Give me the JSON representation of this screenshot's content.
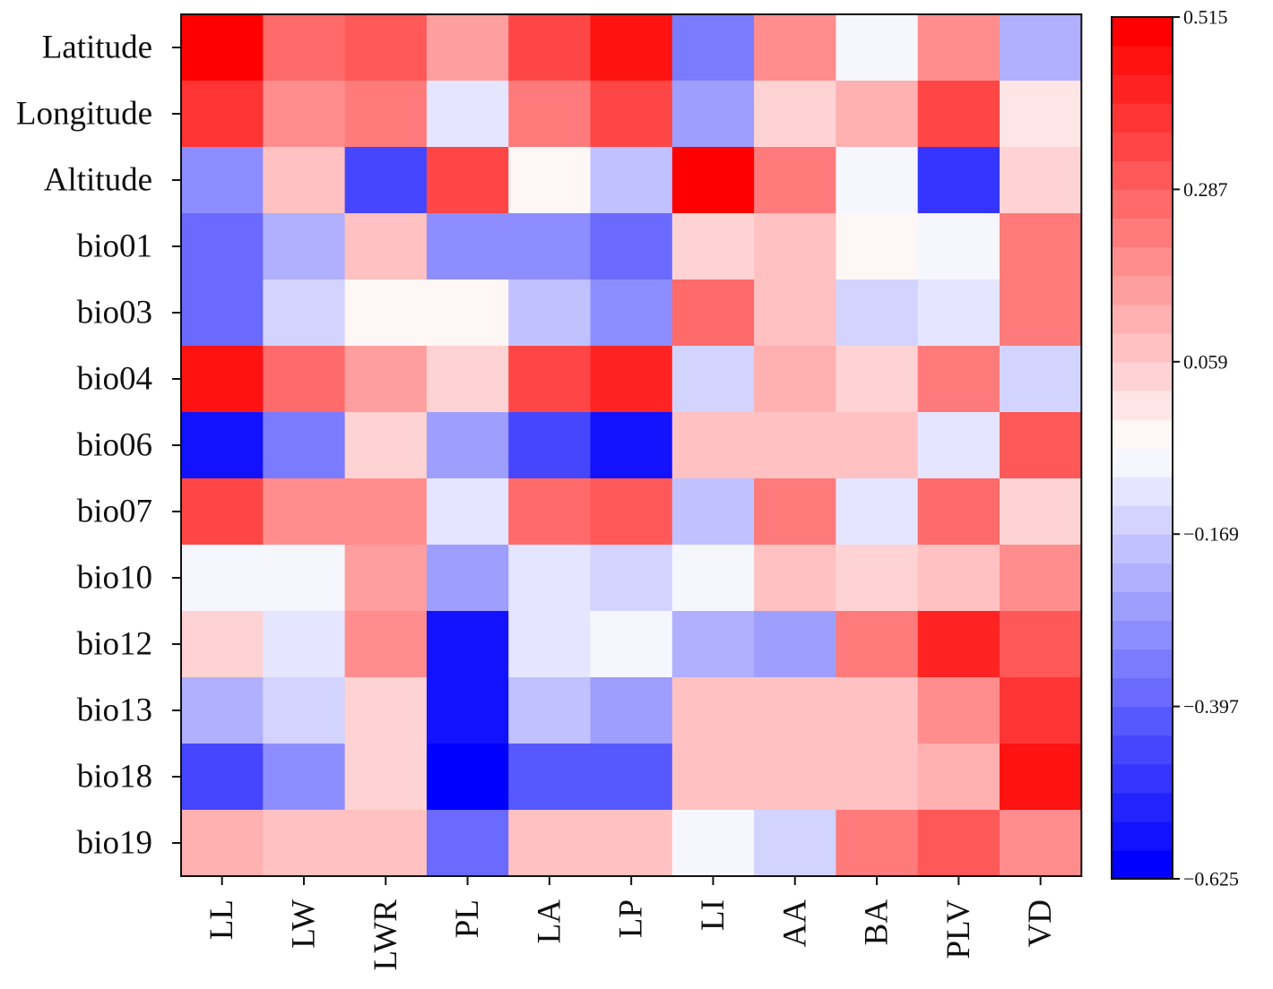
{
  "chart_data": {
    "type": "heatmap",
    "x_categories": [
      "LL",
      "LW",
      "LWR",
      "PL",
      "LA",
      "LP",
      "LI",
      "AA",
      "BA",
      "PLV",
      "VD"
    ],
    "y_categories": [
      "Latitude",
      "Longitude",
      "Altitude",
      "bio01",
      "bio03",
      "bio04",
      "bio06",
      "bio07",
      "bio10",
      "bio12",
      "bio13",
      "bio18",
      "bio19"
    ],
    "values": [
      [
        0.515,
        0.25,
        0.3,
        0.14,
        0.34,
        0.45,
        -0.34,
        0.18,
        -0.06,
        0.18,
        -0.23
      ],
      [
        0.4,
        0.18,
        0.22,
        -0.11,
        0.24,
        0.34,
        -0.27,
        0.04,
        0.11,
        0.34,
        -0.01
      ],
      [
        -0.29,
        0.09,
        -0.47,
        0.34,
        -0.02,
        -0.2,
        0.515,
        0.24,
        -0.08,
        -0.5,
        0.04
      ],
      [
        -0.38,
        -0.22,
        0.07,
        -0.31,
        -0.31,
        -0.37,
        0.04,
        0.09,
        -0.03,
        -0.07,
        0.24
      ],
      [
        -0.38,
        -0.14,
        -0.03,
        -0.03,
        -0.2,
        -0.32,
        0.25,
        0.09,
        -0.16,
        -0.11,
        0.24
      ],
      [
        0.47,
        0.27,
        0.17,
        0.04,
        0.36,
        0.42,
        -0.15,
        0.11,
        0.04,
        0.22,
        -0.15
      ],
      [
        -0.57,
        -0.34,
        0.04,
        -0.25,
        -0.46,
        -0.57,
        0.09,
        0.07,
        0.07,
        -0.11,
        0.3
      ],
      [
        0.34,
        0.21,
        0.21,
        -0.1,
        0.25,
        0.32,
        -0.19,
        0.24,
        -0.1,
        0.27,
        0.04
      ],
      [
        -0.07,
        -0.07,
        0.14,
        -0.26,
        -0.1,
        -0.15,
        -0.07,
        0.09,
        0.04,
        0.07,
        0.18
      ],
      [
        0.04,
        -0.1,
        0.18,
        -0.58,
        -0.1,
        -0.06,
        -0.22,
        -0.25,
        0.24,
        0.42,
        0.31
      ],
      [
        -0.23,
        -0.15,
        0.04,
        -0.55,
        -0.2,
        -0.25,
        0.09,
        0.09,
        0.07,
        0.21,
        0.4
      ],
      [
        -0.44,
        -0.3,
        0.04,
        -0.625,
        -0.4,
        -0.42,
        0.09,
        0.07,
        0.09,
        0.13,
        0.47
      ],
      [
        0.11,
        0.07,
        0.09,
        -0.36,
        0.07,
        0.09,
        -0.07,
        -0.15,
        0.24,
        0.32,
        0.21
      ]
    ],
    "vmin": -0.625,
    "vmax": 0.515,
    "colorbar_ticks": [
      0.515,
      0.287,
      0.059,
      -0.169,
      -0.397,
      -0.625
    ],
    "colorbar_tick_labels": [
      "0.515",
      "0.287",
      "0.059",
      "−0.169",
      "−0.397",
      "−0.625"
    ],
    "colormap": {
      "low": "#0000ff",
      "mid": "#ffffff",
      "high": "#ff0000"
    },
    "colorbar_levels": 30
  }
}
